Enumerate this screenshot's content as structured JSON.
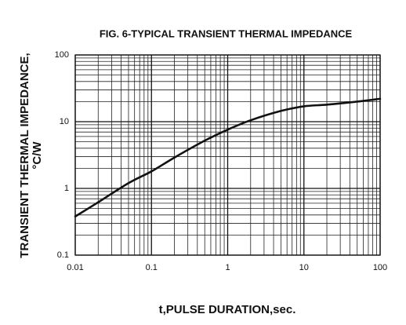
{
  "chart_data": {
    "type": "line",
    "title": "FIG. 6-TYPICAL TRANSIENT THERMAL IMPEDANCE",
    "xlabel": "t,PULSE DURATION,sec.",
    "ylabel": [
      "TRANSIENT THERMAL IMPEDANCE,",
      "°C/W"
    ],
    "x": [
      0.01,
      0.02,
      0.05,
      0.1,
      0.2,
      0.5,
      1,
      2,
      5,
      10,
      20,
      50,
      100
    ],
    "values": [
      0.38,
      0.62,
      1.2,
      1.8,
      2.9,
      5.2,
      7.6,
      10.5,
      14.5,
      17,
      18,
      20,
      22
    ],
    "color": "#111111",
    "xlim": [
      0.01,
      100
    ],
    "xticks": [
      0.01,
      0.1,
      1,
      10,
      100
    ],
    "ylim": [
      0.1,
      100
    ],
    "yticks": [
      0.1,
      1,
      10,
      100
    ],
    "xscale": "log",
    "yscale": "log",
    "grid": true,
    "minor_grid": true
  }
}
